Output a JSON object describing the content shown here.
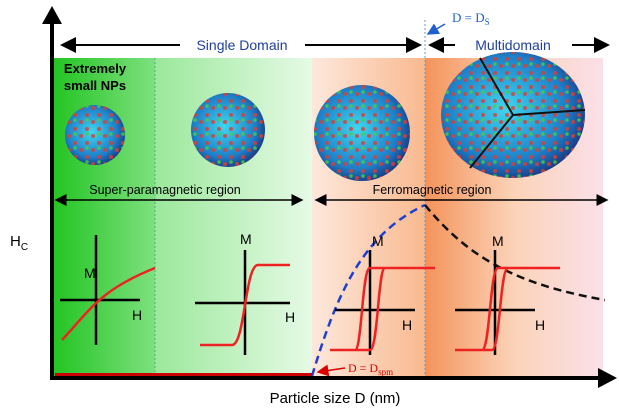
{
  "top": {
    "single_domain": "Single Domain",
    "multidomain": "Multidomain",
    "ds": {
      "main": "D = D",
      "sub": "S"
    }
  },
  "particles": {
    "small_label": [
      "Extremely",
      "small NPs"
    ]
  },
  "regions": {
    "superparamagnetic": "Super-paramagnetic region",
    "ferromagnetic": "Ferromagnetic region"
  },
  "axes": {
    "y_label": {
      "main": "H",
      "sub": "C"
    },
    "x_label": "Particle size D (nm)"
  },
  "loops": [
    {
      "m": "M",
      "h": "H"
    },
    {
      "m": "M",
      "h": "H"
    },
    {
      "m": "M",
      "h": "H"
    },
    {
      "m": "M",
      "h": "H"
    }
  ],
  "dspm": {
    "main": "D = D",
    "sub": "spm"
  }
}
